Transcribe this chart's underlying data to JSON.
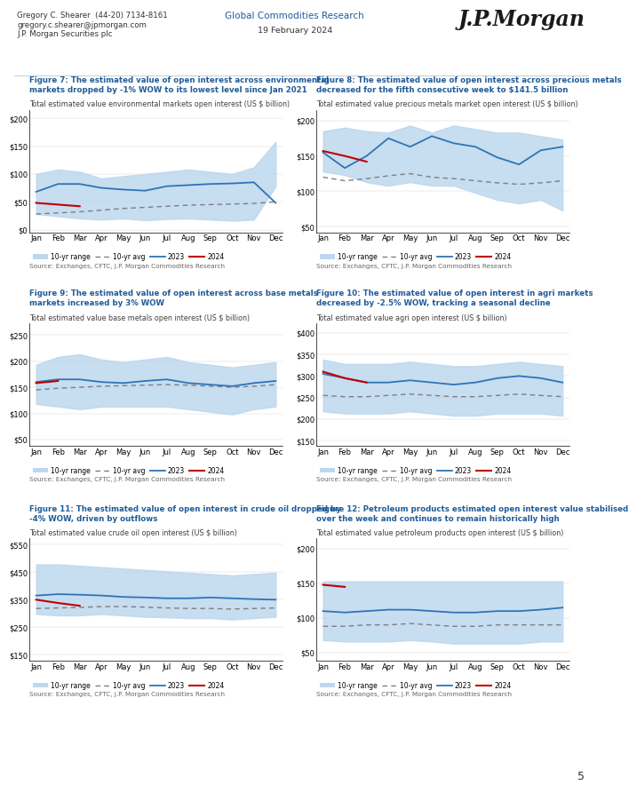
{
  "header": {
    "left_lines": [
      "Gregory C. Shearer  (44-20) 7134-8161",
      "gregory.c.shearer@jpmorgan.com",
      "J.P. Morgan Securities plc"
    ],
    "center_text": "Global Commodities Research",
    "date_text": "19 February 2024",
    "jpmorgan": "J.P.Morgan"
  },
  "figures": [
    {
      "title_line1": "Figure 7: The estimated value of open interest across environmental",
      "title_line2": "markets dropped by -1% WOW to its lowest level since Jan 2021",
      "subtitle": "Total estimated value environmental markets open interest (US $ billion)",
      "yticks": [
        0,
        50,
        100,
        150,
        200
      ],
      "ylim": [
        -5,
        215
      ],
      "ytick_labels": [
        "$0",
        "$50",
        "$100",
        "$150",
        "$200"
      ],
      "range_upper": [
        100,
        108,
        104,
        92,
        96,
        100,
        104,
        108,
        104,
        100,
        112,
        158
      ],
      "range_lower": [
        28,
        24,
        20,
        18,
        20,
        17,
        19,
        20,
        18,
        16,
        18,
        78
      ],
      "line2023": [
        68,
        82,
        82,
        75,
        72,
        70,
        78,
        80,
        82,
        83,
        85,
        48
      ],
      "line2024": [
        48,
        45,
        42,
        null,
        null,
        null,
        null,
        null,
        null,
        null,
        null,
        null
      ],
      "avg": [
        28,
        30,
        32,
        35,
        38,
        40,
        42,
        44,
        45,
        46,
        47,
        50
      ],
      "source": "Source: Exchanges, CFTC, J.P. Morgan Commodities Research"
    },
    {
      "title_line1": "Figure 8: The estimated value of open interest across precious metals",
      "title_line2": "decreased for the fifth consecutive week to $141.5 billion",
      "subtitle": "Total estimated value precious metals market open interest (US $ billion)",
      "yticks": [
        50,
        100,
        150,
        200
      ],
      "ylim": [
        42,
        215
      ],
      "ytick_labels": [
        "$50",
        "$100",
        "$150",
        "$200"
      ],
      "range_upper": [
        185,
        190,
        185,
        183,
        193,
        183,
        193,
        188,
        183,
        183,
        178,
        173
      ],
      "range_lower": [
        128,
        123,
        113,
        108,
        113,
        108,
        108,
        98,
        88,
        83,
        88,
        73
      ],
      "line2023": [
        155,
        133,
        150,
        175,
        163,
        178,
        168,
        163,
        148,
        138,
        158,
        163
      ],
      "line2024": [
        157,
        150,
        142,
        null,
        null,
        null,
        null,
        null,
        null,
        null,
        null,
        null
      ],
      "avg": [
        120,
        115,
        118,
        122,
        125,
        120,
        118,
        115,
        112,
        110,
        112,
        115
      ],
      "source": "Source: Exchanges, CFTC, J.P. Morgan Commodities Research"
    },
    {
      "title_line1": "Figure 9: The estimated value of open interest across base metals",
      "title_line2": "markets increased by 3% WOW",
      "subtitle": "Total estimated value base metals open interest (US $ billion)",
      "yticks": [
        50,
        100,
        150,
        200,
        250
      ],
      "ylim": [
        38,
        272
      ],
      "ytick_labels": [
        "$50",
        "$100",
        "$150",
        "$200",
        "$250"
      ],
      "range_upper": [
        193,
        208,
        213,
        203,
        198,
        203,
        208,
        198,
        193,
        188,
        193,
        198
      ],
      "range_lower": [
        118,
        113,
        108,
        113,
        113,
        113,
        113,
        108,
        103,
        98,
        108,
        113
      ],
      "line2023": [
        160,
        165,
        165,
        160,
        158,
        162,
        165,
        158,
        155,
        152,
        158,
        162
      ],
      "line2024": [
        158,
        162,
        null,
        null,
        null,
        null,
        null,
        null,
        null,
        null,
        null,
        null
      ],
      "avg": [
        145,
        148,
        150,
        152,
        153,
        154,
        155,
        154,
        152,
        150,
        152,
        155
      ],
      "source": "Source: Exchanges, CFTC, J.P. Morgan Commodities Research"
    },
    {
      "title_line1": "Figure 10: The estimated value of open interest in agri markets",
      "title_line2": "decreased by -2.5% WOW, tracking a seasonal decline",
      "subtitle": "Total estimated value agri open interest (US $ billion)",
      "yticks": [
        150,
        200,
        250,
        300,
        350,
        400
      ],
      "ylim": [
        138,
        422
      ],
      "ytick_labels": [
        "$150",
        "$200",
        "$250",
        "$300",
        "$350",
        "$400"
      ],
      "range_upper": [
        338,
        328,
        328,
        328,
        333,
        328,
        323,
        323,
        328,
        333,
        328,
        323
      ],
      "range_lower": [
        218,
        213,
        213,
        213,
        218,
        213,
        208,
        208,
        213,
        213,
        213,
        208
      ],
      "line2023": [
        305,
        295,
        285,
        285,
        290,
        285,
        280,
        285,
        295,
        300,
        295,
        285
      ],
      "line2024": [
        310,
        295,
        285,
        null,
        null,
        null,
        null,
        null,
        null,
        null,
        null,
        null
      ],
      "avg": [
        255,
        252,
        252,
        255,
        258,
        255,
        252,
        252,
        255,
        258,
        255,
        252
      ],
      "source": "Source: Exchanges, CFTC, J.P. Morgan Commodities Research"
    },
    {
      "title_line1": "Figure 11: The estimated value of open interest in crude oil dropped by",
      "title_line2": "-4% WOW, driven by outflows",
      "subtitle": "Total estimated value crude oil open interest (US $ billion)",
      "yticks": [
        150,
        250,
        350,
        450,
        550
      ],
      "ylim": [
        128,
        572
      ],
      "ytick_labels": [
        "$150",
        "$250",
        "$350",
        "$450",
        "$550"
      ],
      "range_upper": [
        478,
        478,
        473,
        468,
        463,
        458,
        453,
        448,
        443,
        438,
        443,
        448
      ],
      "range_lower": [
        298,
        293,
        293,
        298,
        293,
        288,
        286,
        283,
        283,
        278,
        283,
        288
      ],
      "line2023": [
        365,
        370,
        368,
        365,
        360,
        358,
        355,
        355,
        358,
        355,
        352,
        350
      ],
      "line2024": [
        350,
        338,
        328,
        null,
        null,
        null,
        null,
        null,
        null,
        null,
        null,
        null
      ],
      "avg": [
        318,
        320,
        322,
        325,
        325,
        323,
        320,
        318,
        318,
        316,
        318,
        320
      ],
      "source": "Source: Exchanges, CFTC, J.P. Morgan Commodities Research"
    },
    {
      "title_line1": "Figure 12: Petroleum products estimated open interest value stabilised",
      "title_line2": "over the week and continues to remain historically high",
      "subtitle": "Total estimated value petroleum products open interest (US $ billion)",
      "yticks": [
        50,
        100,
        150,
        200
      ],
      "ylim": [
        38,
        215
      ],
      "ytick_labels": [
        "$50",
        "$100",
        "$150",
        "$200"
      ],
      "range_upper": [
        153,
        153,
        153,
        153,
        153,
        153,
        153,
        153,
        153,
        153,
        153,
        153
      ],
      "range_lower": [
        68,
        66,
        66,
        66,
        68,
        66,
        63,
        63,
        63,
        63,
        66,
        66
      ],
      "line2023": [
        110,
        108,
        110,
        112,
        112,
        110,
        108,
        108,
        110,
        110,
        112,
        115
      ],
      "line2024": [
        148,
        145,
        null,
        null,
        null,
        null,
        null,
        null,
        null,
        null,
        null,
        null
      ],
      "avg": [
        88,
        88,
        90,
        90,
        92,
        90,
        88,
        88,
        90,
        90,
        90,
        90
      ],
      "source": "Source: Exchanges, CFTC, J.P. Morgan Commodities Research"
    }
  ],
  "months": [
    "Jan",
    "Feb",
    "Mar",
    "Apr",
    "May",
    "Jun",
    "Jul",
    "Aug",
    "Sep",
    "Oct",
    "Nov",
    "Dec"
  ],
  "range_color": "#BDD7EE",
  "line2023_color": "#2E74B5",
  "line2024_color": "#C00000",
  "avg_color": "#7F7F7F",
  "title_color": "#1F5C99",
  "subtitle_color": "#404040",
  "source_color": "#666666",
  "footer_num": "5"
}
